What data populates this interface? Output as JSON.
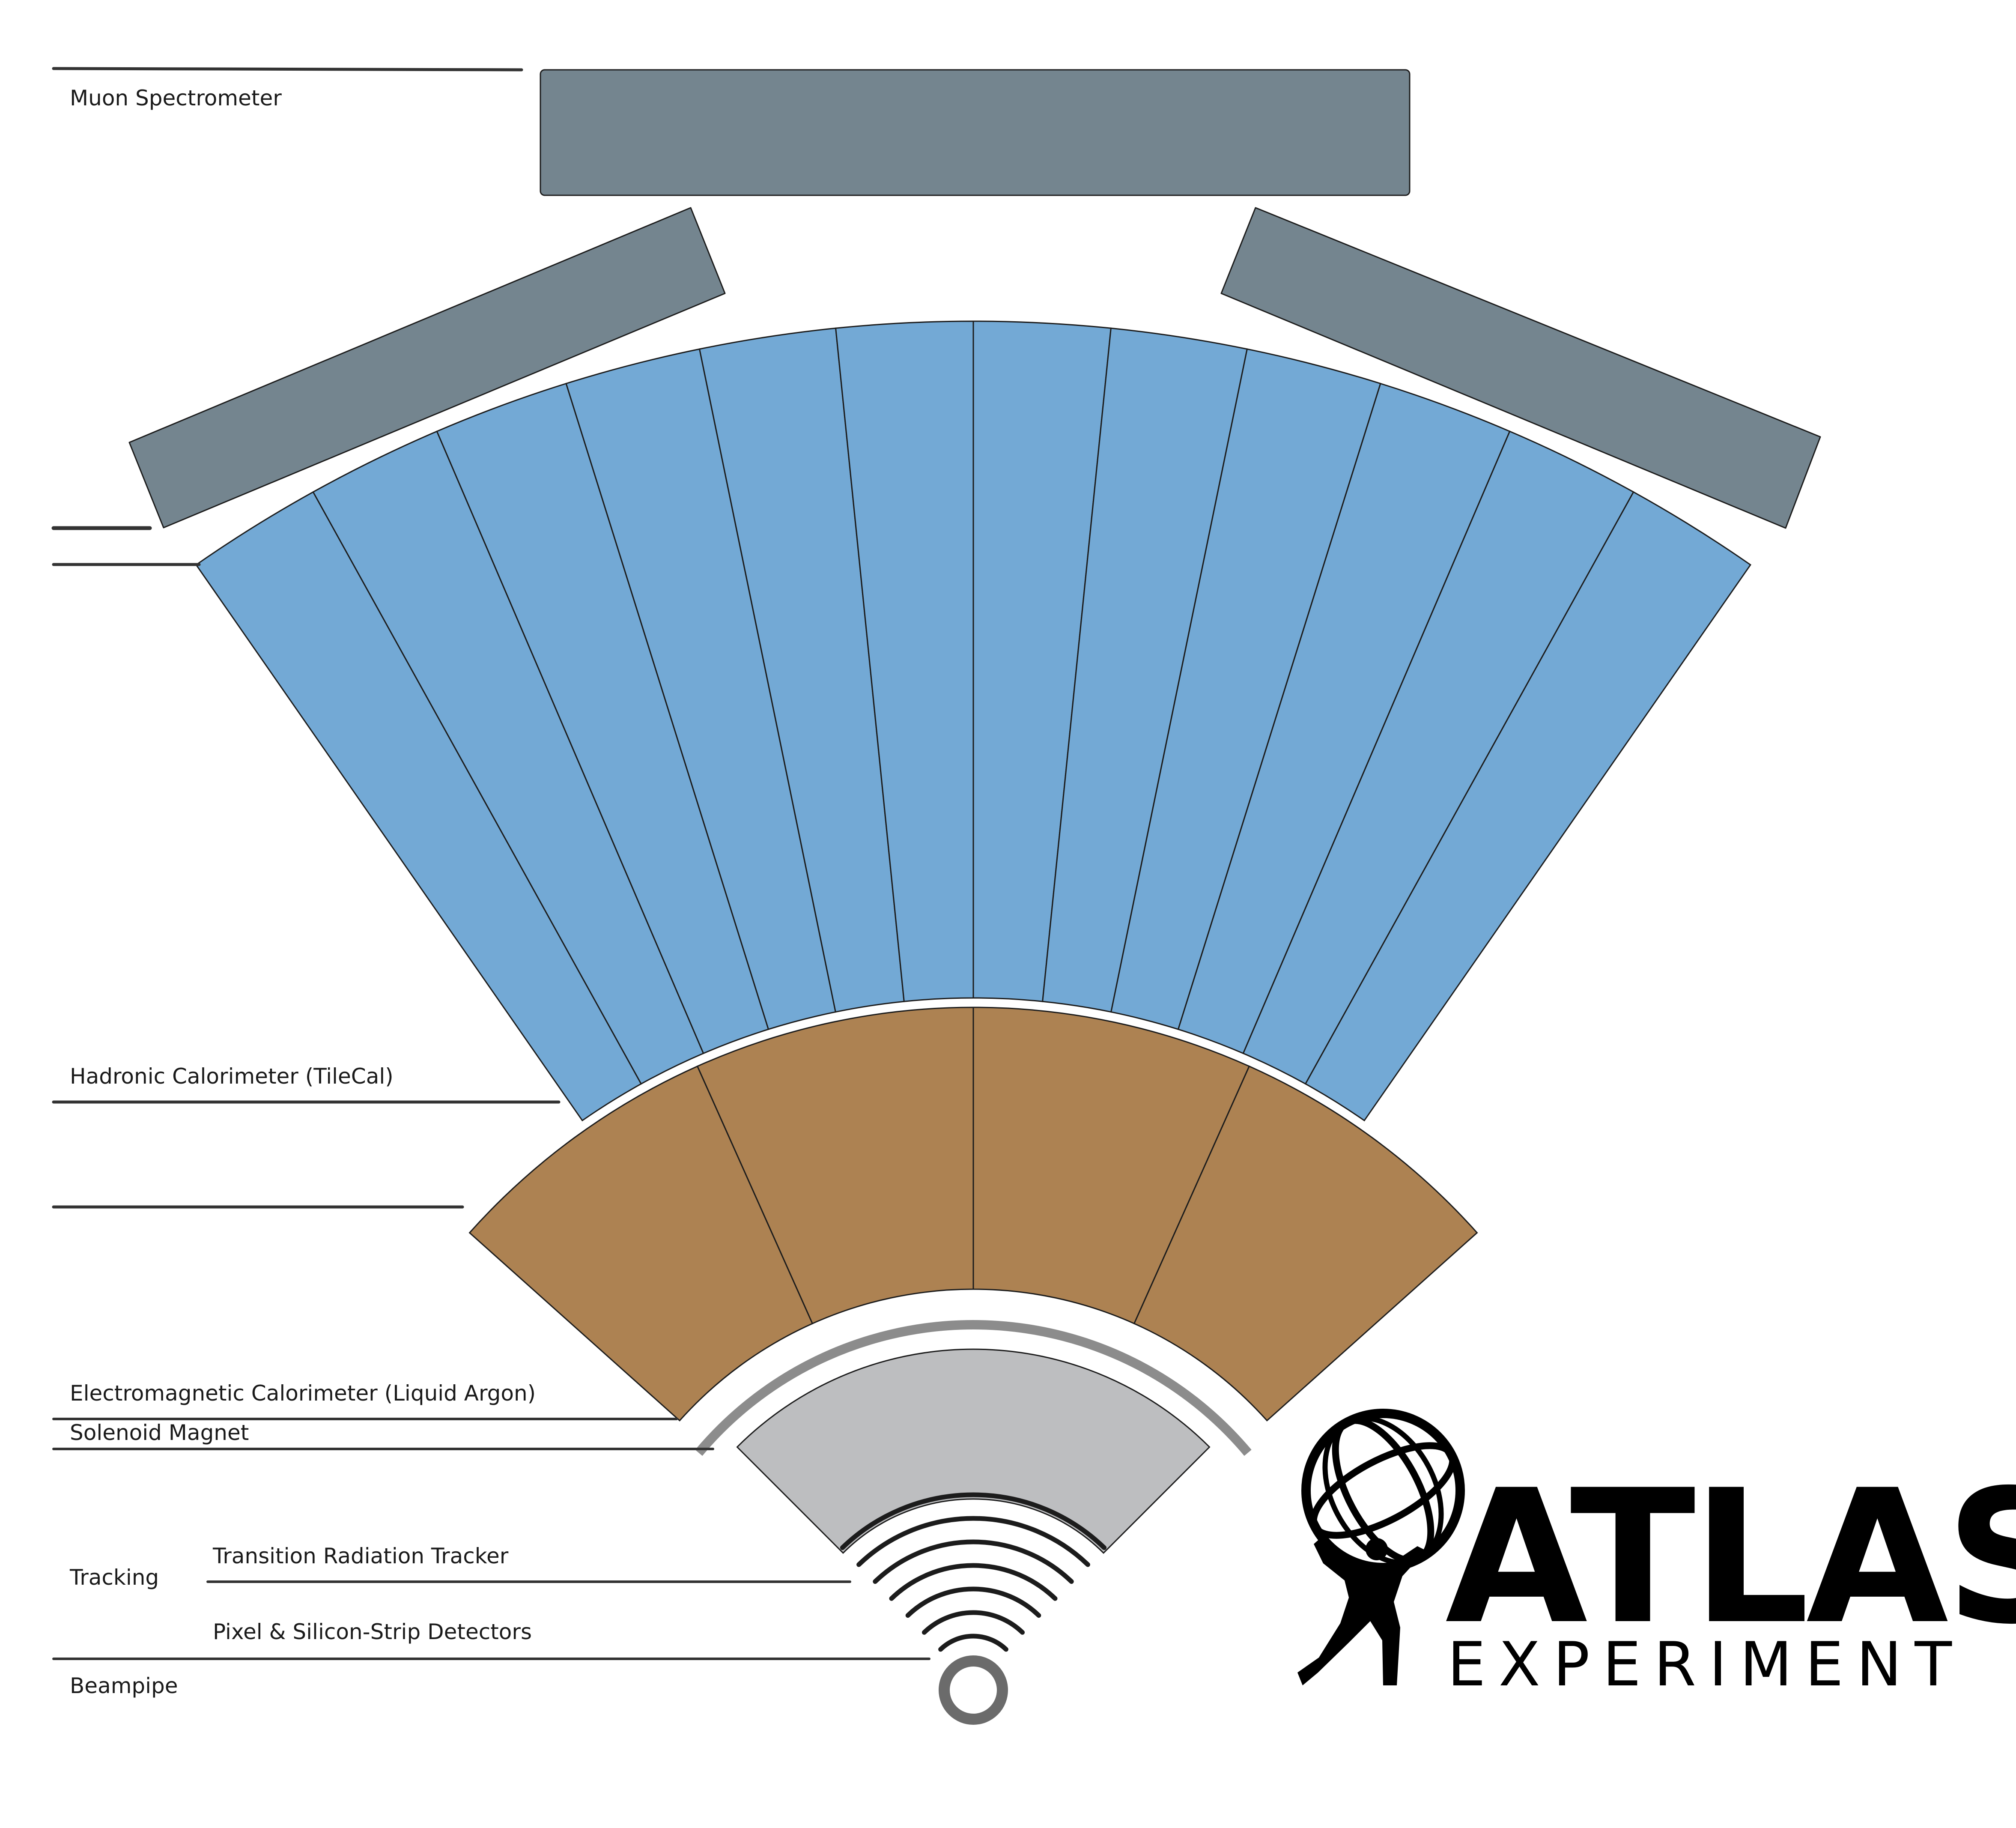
{
  "labels": {
    "muon": "Muon Spectrometer",
    "hadronic": "Hadronic Calorimeter (TileCal)",
    "em": "Electromagnetic Calorimeter (Liquid Argon)",
    "solenoid": "Solenoid Magnet",
    "tracking": "Tracking",
    "trt": "Transition Radiation Tracker",
    "pixel": "Pixel & Silicon-Strip Detectors",
    "beampipe": "Beampipe"
  },
  "logo": {
    "title": "ATLAS",
    "subtitle": "EXPERIMENT"
  },
  "colors": {
    "muon": "#74858f",
    "tilecal": "#73a9d5",
    "em_calorimeter": "#ad8252",
    "solenoid": "#8c8c8c",
    "trt": "#bdbec0",
    "pixel": "#1c1c1c",
    "beampipe": "#6b6b6b"
  },
  "counts": {
    "tilecal_segments": 12,
    "em_segments": 4,
    "pixel_arcs": 7
  }
}
